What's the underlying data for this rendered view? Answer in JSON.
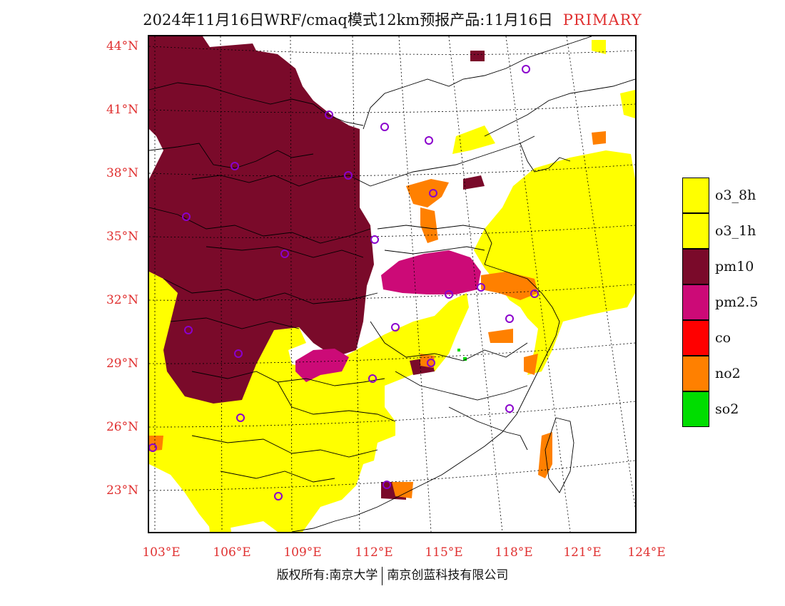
{
  "title": "2024年11月16日WRF/cmaq模式12km预报产品:11月16日",
  "title_tag": "PRIMARY",
  "latitude_labels": [
    "44°N",
    "41°N",
    "38°N",
    "35°N",
    "32°N",
    "29°N",
    "26°N",
    "23°N"
  ],
  "longitude_labels": [
    "103°E",
    "106°E",
    "109°E",
    "112°E",
    "115°E",
    "118°E",
    "121°E",
    "124°E"
  ],
  "legend": [
    {
      "label": "o3_8h",
      "color": "#ffff00"
    },
    {
      "label": "o3_1h",
      "color": "#ffff00"
    },
    {
      "label": "pm10",
      "color": "#7a0a2a"
    },
    {
      "label": "pm2.5",
      "color": "#cc0a77"
    },
    {
      "label": "co",
      "color": "#ff0000"
    },
    {
      "label": "no2",
      "color": "#ff8000"
    },
    {
      "label": "so2",
      "color": "#00dd00"
    }
  ],
  "footer": {
    "left": "版权所有:南京大学",
    "right": "南京创蓝科技有限公司"
  }
}
